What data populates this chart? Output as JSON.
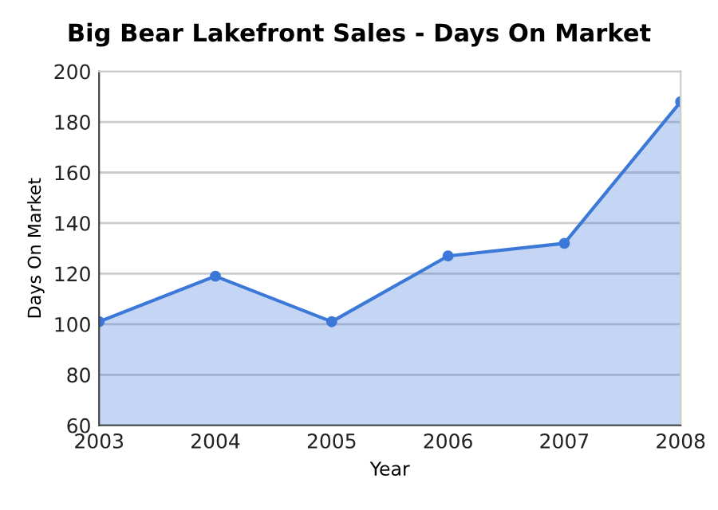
{
  "chart_data": {
    "type": "area",
    "title": "Big Bear Lakefront Sales - Days On Market",
    "xlabel": "Year",
    "ylabel": "Days On Market",
    "x": [
      2003,
      2004,
      2005,
      2006,
      2007,
      2008
    ],
    "series": [
      {
        "color": "#3c78d8",
        "values": [
          101,
          119,
          101,
          127,
          132,
          188
        ]
      }
    ],
    "xlim": [
      2003,
      2008
    ],
    "xticks": [
      2003,
      2004,
      2005,
      2006,
      2007,
      2008
    ],
    "ylim": [
      60,
      200
    ],
    "yticks": [
      60,
      80,
      100,
      120,
      140,
      160,
      180,
      200
    ],
    "grid": "y",
    "marker": "circle",
    "line_style": "solid"
  }
}
